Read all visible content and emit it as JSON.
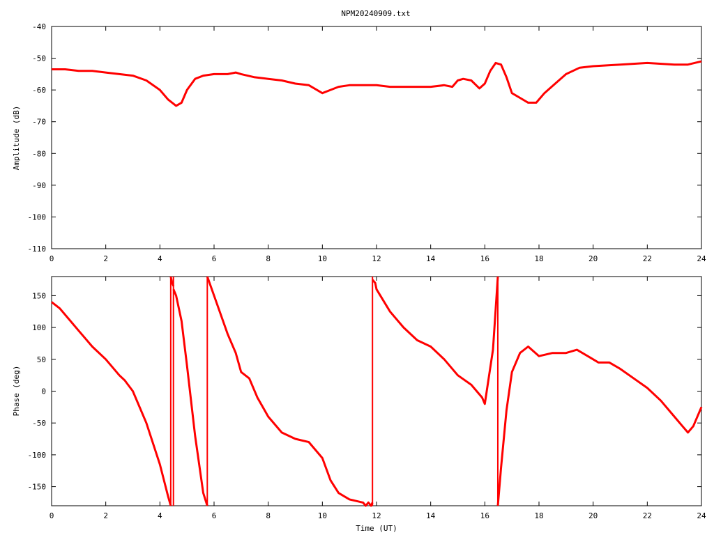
{
  "title": "NPM20240909.txt",
  "colors": {
    "series": "#ff0000",
    "axis": "#000000",
    "background": "#ffffff"
  },
  "chart_data": [
    {
      "type": "line",
      "title": "NPM20240909.txt",
      "xlabel": "",
      "ylabel": "Amplitude (dB)",
      "xlim": [
        0,
        24
      ],
      "ylim": [
        -110,
        -40
      ],
      "xticks": [
        0,
        2,
        4,
        6,
        8,
        10,
        12,
        14,
        16,
        18,
        20,
        22,
        24
      ],
      "yticks": [
        -110,
        -100,
        -90,
        -80,
        -70,
        -60,
        -50,
        -40
      ],
      "grid": false,
      "legend": "none",
      "series": [
        {
          "x": [
            0,
            0.5,
            1,
            1.5,
            2,
            2.5,
            3,
            3.5,
            4,
            4.3,
            4.6,
            4.8,
            5,
            5.3,
            5.6,
            6,
            6.5,
            6.8,
            7,
            7.5,
            8,
            8.5,
            9,
            9.5,
            10,
            10.3,
            10.6,
            11,
            11.5,
            12,
            12.5,
            13,
            13.5,
            14,
            14.5,
            14.8,
            15,
            15.2,
            15.5,
            15.8,
            16,
            16.2,
            16.4,
            16.6,
            16.8,
            17,
            17.3,
            17.6,
            17.9,
            18.2,
            18.6,
            19,
            19.5,
            20,
            21,
            22,
            23,
            23.5,
            24
          ],
          "y": [
            -53.5,
            -53.5,
            -54,
            -54,
            -54.5,
            -55,
            -55.5,
            -57,
            -60,
            -63,
            -65,
            -64,
            -60,
            -56.5,
            -55.5,
            -55,
            -55,
            -54.5,
            -55,
            -56,
            -56.5,
            -57,
            -58,
            -58.5,
            -61,
            -60,
            -59,
            -58.5,
            -58.5,
            -58.5,
            -59,
            -59,
            -59,
            -59,
            -58.5,
            -59,
            -57,
            -56.5,
            -57,
            -59.5,
            -58,
            -54,
            -51.5,
            -52,
            -56,
            -61,
            -62.5,
            -64,
            -64,
            -61,
            -58,
            -55,
            -53,
            -52.5,
            -52,
            -51.5,
            -52,
            -52,
            -51
          ]
        }
      ]
    },
    {
      "type": "line",
      "title": "",
      "xlabel": "Time (UT)",
      "ylabel": "Phase (deg)",
      "xlim": [
        0,
        24
      ],
      "ylim": [
        -180,
        180
      ],
      "xticks": [
        0,
        2,
        4,
        6,
        8,
        10,
        12,
        14,
        16,
        18,
        20,
        22,
        24
      ],
      "yticks": [
        -150,
        -100,
        -50,
        0,
        50,
        100,
        150
      ],
      "grid": false,
      "legend": "none",
      "series": [
        {
          "x": [
            0,
            0.3,
            0.6,
            1,
            1.5,
            2,
            2.5,
            2.7,
            3,
            3.5,
            4,
            4.3,
            4.4,
            4.4,
            4.45,
            4.5,
            4.5,
            4.6,
            4.8,
            5,
            5.3,
            5.6,
            5.75,
            5.75,
            6,
            6.5,
            6.8,
            7,
            7.3,
            7.6,
            8,
            8.5,
            9,
            9.5,
            10,
            10.3,
            10.6,
            11,
            11.5,
            11.6,
            11.7,
            11.8,
            11.85,
            11.85,
            11.95,
            12,
            12.5,
            13,
            13.5,
            14,
            14.5,
            15,
            15.5,
            15.9,
            16,
            16.3,
            16.48,
            16.48,
            16.6,
            16.8,
            17,
            17.3,
            17.6,
            18,
            18.5,
            19,
            19.4,
            19.8,
            20.2,
            20.6,
            21,
            21.5,
            22,
            22.5,
            23,
            23.3,
            23.5,
            23.7,
            24
          ],
          "y": [
            140,
            130,
            115,
            95,
            70,
            50,
            25,
            17,
            0,
            -50,
            -115,
            -165,
            -180,
            180,
            170,
            165,
            160,
            150,
            110,
            40,
            -70,
            -160,
            -180,
            180,
            150,
            90,
            60,
            30,
            20,
            -10,
            -40,
            -65,
            -75,
            -80,
            -105,
            -140,
            -160,
            -170,
            -175,
            -180,
            -175,
            -180,
            -175,
            175,
            170,
            160,
            125,
            100,
            80,
            70,
            50,
            25,
            10,
            -10,
            -20,
            65,
            180,
            -180,
            -120,
            -30,
            30,
            60,
            70,
            55,
            60,
            60,
            65,
            55,
            45,
            45,
            35,
            20,
            5,
            -15,
            -40,
            -55,
            -65,
            -55,
            -25
          ]
        }
      ]
    }
  ]
}
